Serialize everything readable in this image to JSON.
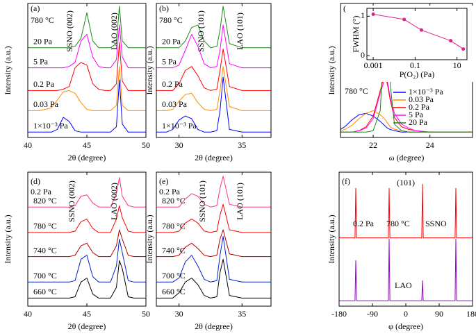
{
  "chart_data": [
    {
      "type": "line",
      "title": "(a)",
      "xlabel": "2θ (degree)",
      "ylabel": "Intensity (a.u.)",
      "x": [
        40,
        41,
        42,
        42.5,
        43,
        43.5,
        44,
        44.5,
        45,
        45.5,
        46,
        46.5,
        47,
        47.5,
        47.75,
        48,
        48.5,
        49,
        50
      ],
      "xlim": [
        40,
        50
      ],
      "xticks": [
        40,
        45,
        50
      ],
      "ylim": [
        0,
        100
      ],
      "legend": "left",
      "annotations": [
        {
          "text": "780 °C",
          "color": "#000000"
        },
        {
          "text": "SSNO (002)",
          "color": "#9900cc"
        },
        {
          "text": "LAO (002)",
          "color": "#e0007f"
        }
      ],
      "series": [
        {
          "name": "1×10⁻³ Pa",
          "color": "#0000ff",
          "values": [
            4,
            4,
            4,
            6,
            15,
            12,
            5,
            4,
            4,
            4,
            4,
            4,
            4,
            8,
            43,
            10,
            4,
            4,
            4
          ]
        },
        {
          "name": "0.03 Pa",
          "color": "#ff8c00",
          "values": [
            20,
            20,
            22,
            28,
            34,
            35,
            33,
            26,
            21,
            20,
            20,
            20,
            20,
            24,
            53,
            24,
            20,
            20,
            20
          ]
        },
        {
          "name": "0.2 Pa",
          "color": "#ff0000",
          "values": [
            35,
            35,
            35,
            35,
            36,
            38,
            52,
            56,
            54,
            40,
            36,
            35,
            35,
            40,
            71,
            42,
            35,
            35,
            35
          ]
        },
        {
          "name": "5 Pa",
          "color": "#ff00ff",
          "values": [
            52,
            52,
            52,
            52,
            52,
            53,
            56,
            72,
            77,
            60,
            53,
            52,
            52,
            58,
            84,
            60,
            52,
            52,
            52
          ]
        },
        {
          "name": "20 Pa",
          "color": "#1a8a1a",
          "values": [
            67,
            67,
            67,
            67,
            67,
            67,
            68,
            74,
            93,
            72,
            67,
            67,
            67,
            70,
            98,
            72,
            67,
            67,
            67
          ]
        }
      ]
    },
    {
      "type": "line",
      "title": "(b)",
      "xlabel": "2θ (degree)",
      "ylabel": "Intensity (a.u.)",
      "x": [
        28.2,
        29,
        29.5,
        30,
        30.5,
        31,
        31.5,
        32,
        32.5,
        33,
        33.25,
        33.5,
        34,
        35,
        36,
        37.3
      ],
      "xlim": [
        28.2,
        37.3
      ],
      "xticks": [
        30,
        35
      ],
      "ylim": [
        0,
        100
      ],
      "legend": "left",
      "annotations": [
        {
          "text": "780 °C",
          "color": "#000000"
        },
        {
          "text": "SSNO (101)",
          "color": "#9900cc"
        },
        {
          "text": "LAO (101)",
          "color": "#e0007f"
        }
      ],
      "series": [
        {
          "name": "1×10⁻³ Pa",
          "color": "#0000ff",
          "values": [
            4,
            4,
            6,
            13,
            16,
            14,
            6,
            4,
            4,
            5,
            20,
            45,
            6,
            4,
            4,
            4
          ]
        },
        {
          "name": "0.03 Pa",
          "color": "#ff8c00",
          "values": [
            20,
            20,
            21,
            27,
            32,
            33,
            26,
            21,
            20,
            21,
            35,
            53,
            23,
            20,
            20,
            20
          ]
        },
        {
          "name": "0.2 Pa",
          "color": "#ff0000",
          "values": [
            35,
            35,
            35,
            40,
            50,
            53,
            46,
            37,
            35,
            36,
            50,
            66,
            38,
            35,
            35,
            35
          ]
        },
        {
          "name": "5 Pa",
          "color": "#ff00ff",
          "values": [
            52,
            52,
            52,
            54,
            65,
            77,
            68,
            55,
            52,
            53,
            65,
            84,
            55,
            52,
            52,
            52
          ]
        },
        {
          "name": "20 Pa",
          "color": "#1a8a1a",
          "values": [
            67,
            67,
            67,
            67,
            72,
            82,
            84,
            72,
            67,
            68,
            80,
            98,
            70,
            67,
            67,
            67
          ]
        }
      ]
    },
    {
      "type": "line",
      "title": "(c)",
      "xlabel": "ω (degree)",
      "ylabel": "Intensity (a.u.)",
      "x": [
        20.85,
        21,
        21.25,
        21.5,
        21.75,
        22,
        22.25,
        22.4,
        22.5,
        22.6,
        22.75,
        23,
        23.25,
        23.5,
        24,
        25,
        25.5
      ],
      "xlim": [
        20.85,
        25.5
      ],
      "xticks": [
        22,
        24
      ],
      "ylim": [
        0,
        100
      ],
      "legend": "right",
      "annotations": [
        {
          "text": "780 °C",
          "color": "#000000"
        }
      ],
      "series": [
        {
          "name": "1×10⁻³ Pa",
          "color": "#0000ff",
          "values": [
            6,
            8,
            13,
            17,
            18,
            16,
            12,
            9,
            7,
            6,
            5,
            4,
            4,
            4,
            4,
            4,
            4
          ]
        },
        {
          "name": "0.03 Pa",
          "color": "#ff8c00",
          "values": [
            5,
            6,
            9,
            14,
            18,
            20,
            17,
            14,
            11,
            8,
            6,
            5,
            4,
            4,
            4,
            4,
            4
          ]
        },
        {
          "name": "0.2 Pa",
          "color": "#ff0000",
          "values": [
            4,
            4,
            4,
            5,
            8,
            16,
            35,
            46,
            40,
            28,
            15,
            8,
            6,
            5,
            4,
            4,
            4
          ]
        },
        {
          "name": "5 Pa",
          "color": "#ff00ff",
          "values": [
            4,
            4,
            4,
            5,
            7,
            14,
            33,
            43,
            42,
            30,
            18,
            10,
            7,
            5,
            4,
            4,
            4
          ]
        },
        {
          "name": "20 Pa",
          "color": "#1a8a1a",
          "values": [
            4,
            4,
            4,
            4,
            4,
            5,
            20,
            80,
            98,
            40,
            10,
            5,
            4,
            4,
            4,
            4,
            4
          ]
        }
      ]
    },
    {
      "type": "line",
      "title": "(d)",
      "xlabel": "2θ (degree)",
      "ylabel": "Intensity (a.u.)",
      "x": [
        40,
        41,
        42,
        42.5,
        43,
        43.5,
        44,
        44.5,
        45,
        45.5,
        46,
        46.5,
        47,
        47.5,
        47.75,
        48,
        48.5,
        49,
        50
      ],
      "xlim": [
        40,
        50
      ],
      "xticks": [
        40,
        45,
        50
      ],
      "ylim": [
        0,
        100
      ],
      "legend": "left",
      "annotations": [
        {
          "text": "0.2 Pa",
          "color": "#000000"
        },
        {
          "text": "SSNO (002)",
          "color": "#9900cc"
        },
        {
          "text": "LAO (002)",
          "color": "#e0007f"
        }
      ],
      "series": [
        {
          "name": "660 °C",
          "color": "#000000",
          "values": [
            6,
            6,
            6,
            6,
            6,
            6,
            7,
            18,
            21,
            9,
            6,
            6,
            6,
            14,
            34,
            28,
            7,
            6,
            6
          ]
        },
        {
          "name": "700 °C",
          "color": "#0022cc",
          "values": [
            18,
            18,
            18,
            18,
            18,
            18,
            19,
            35,
            38,
            22,
            18,
            18,
            18,
            30,
            50,
            40,
            19,
            18,
            18
          ]
        },
        {
          "name": "740 °C",
          "color": "#b00000",
          "values": [
            37,
            37,
            37,
            37,
            37,
            37,
            38,
            45,
            47,
            40,
            37,
            37,
            37,
            45,
            57,
            50,
            38,
            37,
            37
          ]
        },
        {
          "name": "780 °C",
          "color": "#ff0000",
          "values": [
            55,
            55,
            55,
            55,
            55,
            55,
            56,
            63,
            65,
            58,
            55,
            55,
            55,
            65,
            75,
            66,
            56,
            55,
            55
          ]
        },
        {
          "name": "820 °C",
          "color": "#ff3385",
          "values": [
            74,
            74,
            74,
            74,
            74,
            74,
            75,
            82,
            83,
            77,
            74,
            74,
            74,
            84,
            96,
            82,
            75,
            74,
            74
          ]
        }
      ]
    },
    {
      "type": "line",
      "title": "(e)",
      "xlabel": "2θ (degree)",
      "ylabel": "Intensity (a.u.)",
      "x": [
        28.2,
        29,
        29.5,
        30,
        30.5,
        31,
        31.5,
        32,
        32.5,
        33,
        33.25,
        33.5,
        34,
        35,
        36,
        37.3
      ],
      "xlim": [
        28.2,
        37.3
      ],
      "xticks": [
        30,
        35
      ],
      "ylim": [
        0,
        100
      ],
      "legend": "left",
      "annotations": [
        {
          "text": "0.2 Pa",
          "color": "#000000"
        },
        {
          "text": "SSNO (101)",
          "color": "#9900cc"
        },
        {
          "text": "LAO (101)",
          "color": "#e0007f"
        }
      ],
      "series": [
        {
          "name": "660 °C",
          "color": "#000000",
          "values": [
            6,
            6,
            6,
            10,
            18,
            21,
            16,
            8,
            6,
            7,
            25,
            35,
            8,
            6,
            6,
            6
          ]
        },
        {
          "name": "700 °C",
          "color": "#0022cc",
          "values": [
            18,
            18,
            18,
            21,
            33,
            38,
            30,
            20,
            18,
            19,
            38,
            52,
            20,
            18,
            18,
            18
          ]
        },
        {
          "name": "740 °C",
          "color": "#b00000",
          "values": [
            37,
            37,
            37,
            38,
            44,
            47,
            43,
            38,
            37,
            38,
            50,
            57,
            39,
            37,
            37,
            37
          ]
        },
        {
          "name": "780 °C",
          "color": "#ff0000",
          "values": [
            55,
            55,
            55,
            56,
            62,
            65,
            62,
            56,
            55,
            56,
            68,
            76,
            57,
            55,
            55,
            55
          ]
        },
        {
          "name": "820 °C",
          "color": "#ff3385",
          "values": [
            74,
            74,
            74,
            74,
            80,
            84,
            82,
            76,
            74,
            75,
            88,
            97,
            76,
            74,
            74,
            74
          ]
        }
      ]
    },
    {
      "type": "line",
      "title": "(f)",
      "xlabel": "φ (degree)",
      "ylabel": "Intensity (a.u.)",
      "x": [
        -180,
        -137,
        -135,
        -133,
        -47,
        -45,
        -43,
        43,
        45,
        47,
        133,
        135,
        137,
        180
      ],
      "xlim": [
        -180,
        180
      ],
      "xticks": [
        -180,
        -90,
        0,
        90,
        180
      ],
      "ylim": [
        0,
        100
      ],
      "legend": "inline",
      "annotations": [
        {
          "text": "(101)",
          "color": "#000000"
        },
        {
          "text": "0.2 Pa",
          "color": "#000000"
        },
        {
          "text": "780 °C",
          "color": "#000000"
        }
      ],
      "series": [
        {
          "name": "SSNO",
          "color": "#ff0000",
          "values": [
            51,
            51,
            88,
            51,
            51,
            88,
            51,
            51,
            91,
            51,
            51,
            88,
            51,
            51
          ]
        },
        {
          "name": "LAO",
          "color": "#9900cc",
          "values": [
            4,
            4,
            34,
            4,
            4,
            50,
            4,
            4,
            19,
            4,
            4,
            50,
            4,
            4
          ]
        }
      ]
    },
    {
      "type": "line",
      "markers": true,
      "xscale": "log",
      "xlabel": "P(O₂) (Pa)",
      "ylabel": "FWHM (°)",
      "x": [
        0.001,
        0.03,
        0.2,
        5,
        20
      ],
      "xlim": [
        0.0005,
        30
      ],
      "xticks": [
        0.001,
        0.1,
        10
      ],
      "ylim": [
        -0.1,
        1.2
      ],
      "yticks": [
        0,
        1
      ],
      "series": [
        {
          "color": "#e0228c",
          "values": [
            1.05,
            0.92,
            0.65,
            0.38,
            0.17
          ]
        }
      ]
    }
  ]
}
